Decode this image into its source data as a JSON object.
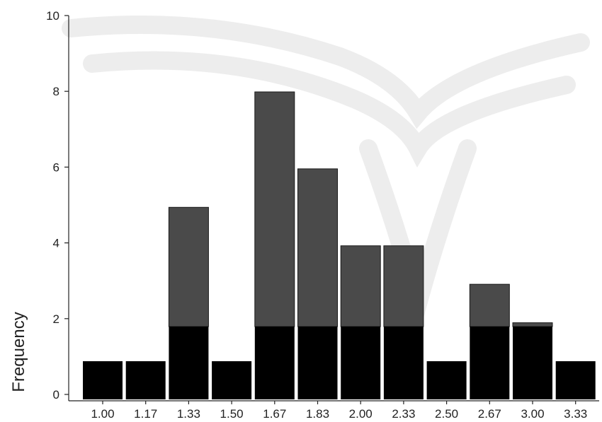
{
  "chart_data": {
    "type": "bar",
    "title": "",
    "xlabel": "",
    "ylabel": "Frequency",
    "categories": [
      "1.00",
      "1.17",
      "1.33",
      "1.50",
      "1.67",
      "1.83",
      "2.00",
      "2.33",
      "2.50",
      "2.67",
      "3.00",
      "3.33"
    ],
    "values": [
      1,
      1,
      5,
      1,
      8,
      6,
      4,
      4,
      1,
      3,
      2,
      1
    ],
    "ylim": [
      0,
      10
    ],
    "yticks": [
      "0",
      "2",
      "4",
      "6",
      "8",
      "10"
    ],
    "grid": false,
    "legend": "none",
    "colors": {
      "bar": "#4a4a4a",
      "bar_base": "#000000"
    }
  }
}
